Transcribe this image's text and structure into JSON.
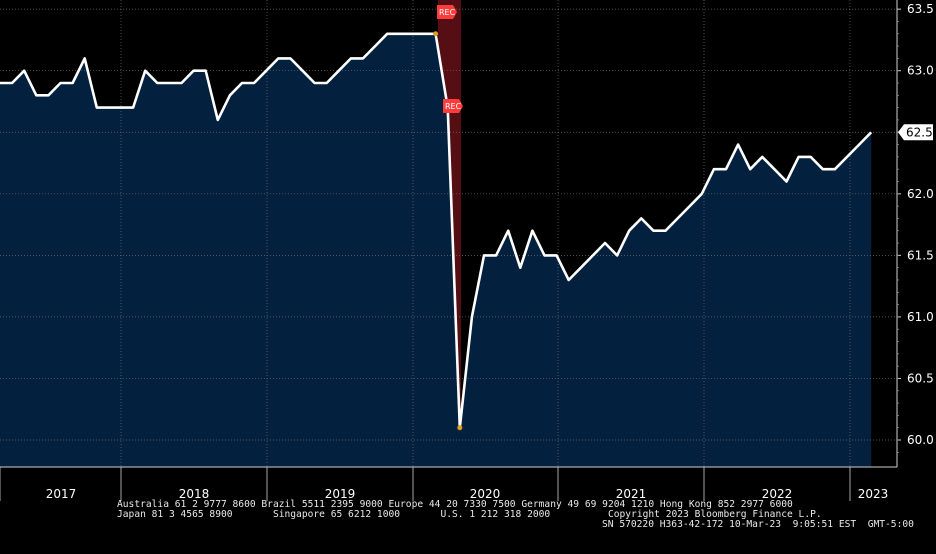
{
  "chart_data": {
    "type": "area",
    "title": "",
    "xlabel": "",
    "ylabel": "",
    "x_ticks": [
      "2017",
      "2018",
      "2019",
      "2020",
      "2021",
      "2022",
      "2023"
    ],
    "y_ticks": [
      60.0,
      60.5,
      61.0,
      61.5,
      62.0,
      62.5,
      63.0,
      63.5
    ],
    "y_tick_labels": [
      "60.0",
      "60.5",
      "61.0",
      "61.5",
      "62.0",
      "62.5",
      "63.0",
      "63.5"
    ],
    "ylim": [
      59.8,
      63.55
    ],
    "grid": "vertical-and-horizontal-dotted",
    "series": [
      {
        "values": [
          62.9,
          62.9,
          63.0,
          62.8,
          62.8,
          62.9,
          62.9,
          63.1,
          62.7,
          62.7,
          62.7,
          62.7,
          63.0,
          62.9,
          62.9,
          62.9,
          63.0,
          63.0,
          62.6,
          62.8,
          62.9,
          62.9,
          63.0,
          63.1,
          63.1,
          63.0,
          62.9,
          62.9,
          63.0,
          63.1,
          63.1,
          63.2,
          63.3,
          63.3,
          63.3,
          63.3,
          63.3,
          62.7,
          60.1,
          61.0,
          61.5,
          61.5,
          61.7,
          61.4,
          61.7,
          61.5,
          61.5,
          61.3,
          61.4,
          61.5,
          61.6,
          61.5,
          61.7,
          61.8,
          61.7,
          61.7,
          61.8,
          61.9,
          62.0,
          62.2,
          62.2,
          62.4,
          62.2,
          62.3,
          62.2,
          62.1,
          62.3,
          62.3,
          62.2,
          62.2,
          62.3,
          62.4,
          62.5
        ]
      }
    ],
    "last_value_label": "62.5",
    "recession_label": "REC",
    "colors": {
      "area": "#03213e",
      "line": "#ffffff",
      "recession": "#5a0f14",
      "marker": "#ff3b3b",
      "last_value_bg": "#ffffff"
    }
  },
  "footer": {
    "line1": "Australia 61 2 9777 8600 Brazil 5511 2395 9000 Europe 44 20 7330 7500 Germany 49 69 9204 1210 Hong Kong 852 2977 6000",
    "line2": "Japan 81 3 4565 8900       Singapore 65 6212 1000       U.S. 1 212 318 2000          Copyright 2023 Bloomberg Finance L.P.",
    "line3": "SN 570220 H363-42-172 10-Mar-23  9:05:51 EST  GMT-5:00"
  }
}
